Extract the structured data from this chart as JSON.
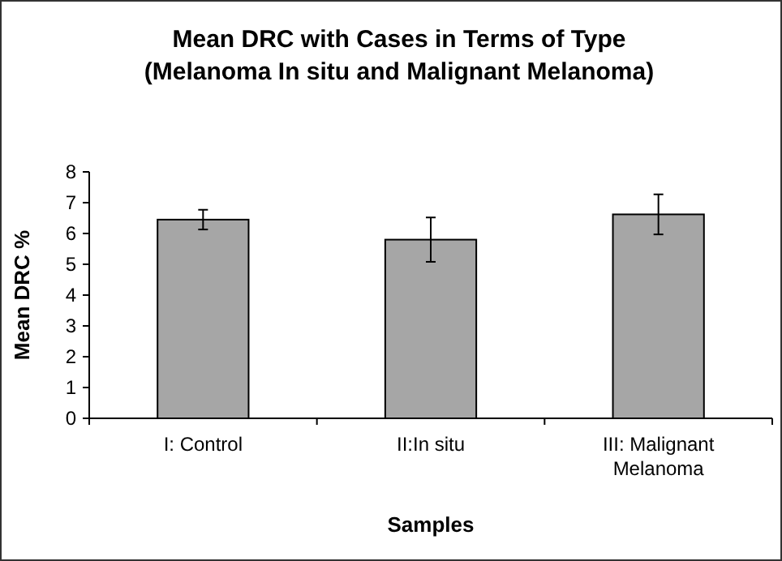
{
  "chart_data": {
    "type": "bar",
    "title": "Mean DRC with Cases in Terms of Type\n(Melanoma In situ and Malignant Melanoma)",
    "xlabel": "Samples",
    "ylabel": "Mean DRC %",
    "categories": [
      "I: Control",
      "II:In situ",
      "III: Malignant Melanoma"
    ],
    "values": [
      6.45,
      5.8,
      6.62
    ],
    "errors": [
      0.32,
      0.72,
      0.65
    ],
    "color": "#a6a6a6",
    "ylim": [
      0,
      8
    ],
    "yticks": [
      0,
      1,
      2,
      3,
      4,
      5,
      6,
      7,
      8
    ],
    "grid": false
  }
}
